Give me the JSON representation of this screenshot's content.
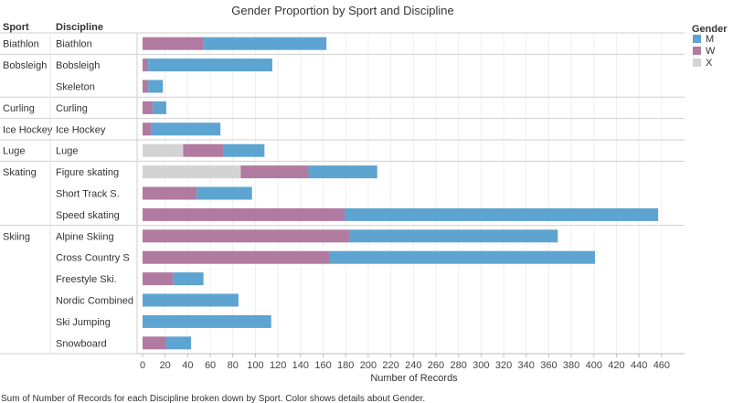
{
  "chart_data": {
    "type": "bar",
    "orientation": "horizontal",
    "stacked": true,
    "title": "Gender Proportion by Sport and Discipline",
    "xlabel": "Number of Records",
    "row_headers": [
      "Sport",
      "Discipline"
    ],
    "caption": "Sum of Number of Records for each Discipline broken down by Sport.  Color shows details about Gender.",
    "xlim": [
      0,
      470
    ],
    "xticks": [
      0,
      20,
      40,
      60,
      80,
      100,
      120,
      140,
      160,
      180,
      200,
      220,
      240,
      260,
      280,
      300,
      320,
      340,
      360,
      380,
      400,
      420,
      440,
      460
    ],
    "grid": true,
    "legend": {
      "title": "Gender",
      "placement": "top-right",
      "items": [
        {
          "name": "M",
          "color": "#5ea4d1"
        },
        {
          "name": "W",
          "color": "#b07aa1"
        },
        {
          "name": "X",
          "color": "#d3d3d3"
        }
      ]
    },
    "stack_order": [
      "X",
      "W",
      "M"
    ],
    "groups": [
      {
        "sport": "Biathlon",
        "disciplines": [
          {
            "name": "Biathlon",
            "M": 109,
            "W": 54,
            "X": 0
          }
        ]
      },
      {
        "sport": "Bobsleigh",
        "disciplines": [
          {
            "name": "Bobsleigh",
            "M": 110,
            "W": 5,
            "X": 0
          },
          {
            "name": "Skeleton",
            "M": 13,
            "W": 5,
            "X": 0
          }
        ]
      },
      {
        "sport": "Curling",
        "disciplines": [
          {
            "name": "Curling",
            "M": 12,
            "W": 9,
            "X": 0
          }
        ]
      },
      {
        "sport": "Ice Hockey",
        "disciplines": [
          {
            "name": "Ice Hockey",
            "M": 61,
            "W": 8,
            "X": 0
          }
        ]
      },
      {
        "sport": "Luge",
        "disciplines": [
          {
            "name": "Luge",
            "M": 36,
            "W": 36,
            "X": 36
          }
        ]
      },
      {
        "sport": "Skating",
        "disciplines": [
          {
            "name": "Figure skating",
            "M": 61,
            "W": 60,
            "X": 87
          },
          {
            "name": "Short Track S.",
            "M": 49,
            "W": 48,
            "X": 0
          },
          {
            "name": "Speed skating",
            "M": 278,
            "W": 179,
            "X": 0
          }
        ]
      },
      {
        "sport": "Skiing",
        "disciplines": [
          {
            "name": "Alpine Skiing",
            "M": 185,
            "W": 183,
            "X": 0
          },
          {
            "name": "Cross Country S",
            "M": 235,
            "W": 166,
            "X": 0
          },
          {
            "name": "Freestyle Ski.",
            "M": 27,
            "W": 27,
            "X": 0
          },
          {
            "name": "Nordic Combined",
            "M": 85,
            "W": 0,
            "X": 0
          },
          {
            "name": "Ski Jumping",
            "M": 114,
            "W": 0,
            "X": 0
          },
          {
            "name": "Snowboard",
            "M": 22,
            "W": 21,
            "X": 0
          }
        ]
      }
    ]
  }
}
